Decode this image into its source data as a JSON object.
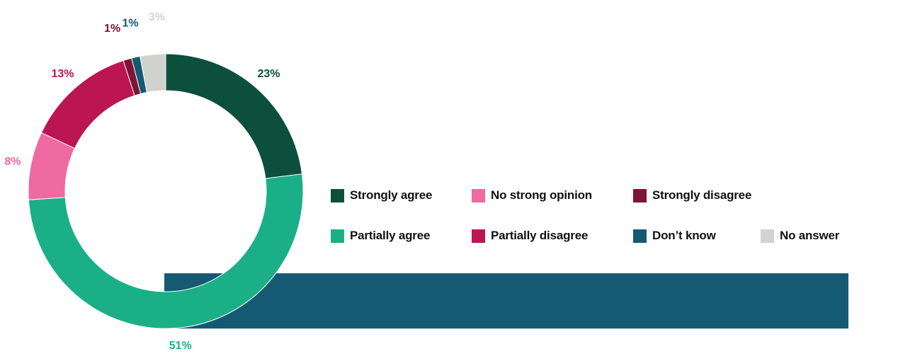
{
  "chart_data": {
    "type": "pie",
    "variant": "donut",
    "title": "",
    "legend_position": "right",
    "slices": [
      {
        "name": "Strongly agree",
        "value": 23,
        "label": "23%",
        "color": "#0c4f3c"
      },
      {
        "name": "Partially agree",
        "value": 51,
        "label": "51%",
        "color": "#1baf87"
      },
      {
        "name": "No strong opinion",
        "value": 8,
        "label": "8%",
        "color": "#ee6aa0"
      },
      {
        "name": "Partially disagree",
        "value": 13,
        "label": "13%",
        "color": "#bb1552"
      },
      {
        "name": "Strongly disagree",
        "value": 1,
        "label": "1%",
        "color": "#7d1535"
      },
      {
        "name": "Don’t know",
        "value": 1,
        "label": "1%",
        "color": "#145a72"
      },
      {
        "name": "No answer",
        "value": 3,
        "label": "3%",
        "color": "#d2d2cf"
      }
    ]
  },
  "decoration": {
    "bar_color": "#155a72"
  }
}
